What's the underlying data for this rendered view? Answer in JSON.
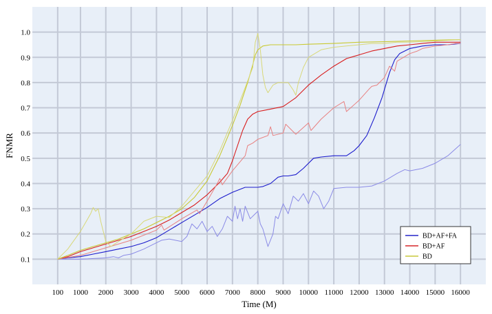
{
  "chart_data": {
    "type": "line",
    "title": "",
    "xlabel": "Time (M)",
    "ylabel": "FNMR",
    "xlim": [
      -900,
      17000
    ],
    "ylim": [
      0,
      1.1
    ],
    "x_ticks": [
      100,
      1000,
      2000,
      3000,
      4000,
      5000,
      6000,
      7000,
      8000,
      9000,
      10000,
      11000,
      12000,
      13000,
      14000,
      15000,
      16000
    ],
    "x_tick_labels": [
      "100",
      "1000",
      "2000",
      "3000",
      "4000",
      "5000",
      "6000",
      "7000",
      "8000",
      "9000",
      "10000",
      "11000",
      "12000",
      "13000",
      "14000",
      "15000",
      "16000"
    ],
    "y_ticks": [
      0.1,
      0.2,
      0.3,
      0.4,
      0.5,
      0.6,
      0.7,
      0.8,
      0.9,
      1.0
    ],
    "y_tick_labels": [
      "0.1",
      "0.2",
      "0.3",
      "0.4",
      "0.5",
      "0.6",
      "0.7",
      "0.8",
      "0.9",
      "1.0"
    ],
    "grid": true,
    "legend_position": "bottom-right",
    "background_color": "#e8eff8",
    "grid_color": "#c3c9d6",
    "legend": [
      {
        "label": "BD+AF+FA",
        "color": "#2525c8"
      },
      {
        "label": "BD+AF",
        "color": "#d62728"
      },
      {
        "label": "BD",
        "color": "#c8c83a"
      }
    ],
    "series": [
      {
        "name": "BD+AF+FA",
        "color": "#1a1acc",
        "width": 1.1,
        "x": [
          100,
          500,
          1000,
          1500,
          2000,
          2500,
          3000,
          3500,
          4000,
          4500,
          5000,
          5500,
          6000,
          6500,
          7000,
          7500,
          8000,
          8200,
          8500,
          8800,
          9000,
          9200,
          9500,
          9800,
          10000,
          10200,
          10500,
          11000,
          11500,
          11800,
          12000,
          12300,
          12600,
          12900,
          13200,
          13400,
          13600,
          14000,
          14500,
          15000,
          15500,
          16000
        ],
        "y": [
          0.1,
          0.105,
          0.11,
          0.12,
          0.13,
          0.14,
          0.15,
          0.165,
          0.185,
          0.215,
          0.245,
          0.275,
          0.305,
          0.34,
          0.365,
          0.385,
          0.385,
          0.388,
          0.4,
          0.425,
          0.43,
          0.43,
          0.435,
          0.46,
          0.48,
          0.5,
          0.505,
          0.51,
          0.51,
          0.53,
          0.55,
          0.59,
          0.66,
          0.74,
          0.84,
          0.89,
          0.915,
          0.935,
          0.945,
          0.95,
          0.95,
          0.955
        ]
      },
      {
        "name": "BD+AF+FA (light)",
        "color": "#8a8ae6",
        "width": 1,
        "x": [
          100,
          1000,
          2000,
          2300,
          2500,
          2700,
          3000,
          3500,
          3800,
          4000,
          4200,
          4500,
          5000,
          5200,
          5400,
          5600,
          5800,
          6000,
          6200,
          6400,
          6600,
          6800,
          7000,
          7100,
          7200,
          7300,
          7400,
          7500,
          7700,
          7900,
          8000,
          8100,
          8200,
          8400,
          8600,
          8700,
          8800,
          9000,
          9200,
          9400,
          9600,
          9800,
          10000,
          10200,
          10400,
          10600,
          10800,
          11000,
          11500,
          12000,
          12500,
          13000,
          13500,
          13800,
          14000,
          14500,
          15000,
          15500,
          16000
        ],
        "y": [
          0.1,
          0.1,
          0.105,
          0.11,
          0.105,
          0.115,
          0.12,
          0.14,
          0.155,
          0.165,
          0.175,
          0.18,
          0.17,
          0.19,
          0.24,
          0.22,
          0.25,
          0.21,
          0.23,
          0.19,
          0.22,
          0.27,
          0.25,
          0.31,
          0.26,
          0.3,
          0.25,
          0.31,
          0.26,
          0.28,
          0.29,
          0.24,
          0.22,
          0.15,
          0.2,
          0.27,
          0.26,
          0.32,
          0.28,
          0.35,
          0.33,
          0.36,
          0.32,
          0.37,
          0.35,
          0.3,
          0.33,
          0.38,
          0.385,
          0.385,
          0.39,
          0.41,
          0.44,
          0.455,
          0.45,
          0.46,
          0.48,
          0.51,
          0.555
        ]
      },
      {
        "name": "BD+AF",
        "color": "#d81c1c",
        "width": 1.1,
        "x": [
          100,
          500,
          1000,
          1500,
          2000,
          2500,
          3000,
          3500,
          4000,
          4500,
          5000,
          5500,
          6000,
          6500,
          6800,
          7000,
          7200,
          7400,
          7600,
          7800,
          8000,
          8500,
          9000,
          9500,
          10000,
          10500,
          11000,
          11500,
          12000,
          12500,
          13000,
          13500,
          14000,
          14500,
          15000,
          15500,
          16000
        ],
        "y": [
          0.1,
          0.11,
          0.13,
          0.145,
          0.16,
          0.175,
          0.19,
          0.21,
          0.23,
          0.255,
          0.285,
          0.315,
          0.355,
          0.405,
          0.44,
          0.49,
          0.55,
          0.61,
          0.655,
          0.675,
          0.685,
          0.695,
          0.705,
          0.74,
          0.79,
          0.83,
          0.865,
          0.895,
          0.91,
          0.925,
          0.935,
          0.945,
          0.95,
          0.955,
          0.96,
          0.96,
          0.96
        ]
      },
      {
        "name": "BD+AF (light)",
        "color": "#e88080",
        "width": 1,
        "x": [
          100,
          1000,
          2000,
          3000,
          4000,
          4200,
          4300,
          5000,
          5600,
          5700,
          6000,
          6400,
          6500,
          6600,
          7000,
          7500,
          7600,
          7800,
          8000,
          8400,
          8500,
          8600,
          9000,
          9100,
          9500,
          10000,
          10100,
          10500,
          11000,
          11400,
          11500,
          12000,
          12400,
          12500,
          12700,
          13000,
          13200,
          13400,
          13500,
          14000,
          14300,
          14500,
          15000,
          15500,
          15800,
          16000
        ],
        "y": [
          0.1,
          0.115,
          0.145,
          0.175,
          0.215,
          0.235,
          0.215,
          0.26,
          0.295,
          0.28,
          0.33,
          0.4,
          0.42,
          0.395,
          0.45,
          0.51,
          0.55,
          0.56,
          0.575,
          0.59,
          0.625,
          0.59,
          0.6,
          0.635,
          0.595,
          0.64,
          0.61,
          0.655,
          0.7,
          0.725,
          0.685,
          0.73,
          0.775,
          0.785,
          0.79,
          0.82,
          0.865,
          0.845,
          0.885,
          0.915,
          0.925,
          0.935,
          0.945,
          0.95,
          0.955,
          0.955
        ]
      },
      {
        "name": "BD",
        "color": "#c9c930",
        "width": 1.1,
        "x": [
          100,
          500,
          1000,
          1500,
          2000,
          2500,
          3000,
          3500,
          4000,
          4500,
          5000,
          5500,
          6000,
          6500,
          7000,
          7300,
          7600,
          7800,
          7900,
          8000,
          8200,
          8500,
          9000,
          9500,
          10000,
          11000,
          12000,
          13000,
          14000,
          15000,
          16000
        ],
        "y": [
          0.1,
          0.115,
          0.135,
          0.15,
          0.165,
          0.18,
          0.2,
          0.22,
          0.245,
          0.27,
          0.3,
          0.345,
          0.41,
          0.51,
          0.63,
          0.71,
          0.8,
          0.87,
          0.91,
          0.93,
          0.945,
          0.95,
          0.95,
          0.95,
          0.952,
          0.955,
          0.96,
          0.962,
          0.965,
          0.968,
          0.97
        ]
      },
      {
        "name": "BD (light)",
        "color": "#d8d878",
        "width": 1,
        "x": [
          100,
          500,
          1000,
          1400,
          1500,
          1600,
          1700,
          1800,
          2000,
          2200,
          2500,
          3000,
          3500,
          4000,
          4500,
          5000,
          5500,
          6000,
          6500,
          7000,
          7500,
          7800,
          7900,
          8000,
          8100,
          8200,
          8300,
          8400,
          8600,
          8800,
          9000,
          9200,
          9400,
          9500,
          9600,
          9800,
          10000,
          10500,
          11000,
          11500,
          12000,
          12500,
          13000,
          13500,
          14000,
          15000,
          16000
        ],
        "y": [
          0.1,
          0.14,
          0.21,
          0.28,
          0.305,
          0.29,
          0.3,
          0.25,
          0.17,
          0.15,
          0.17,
          0.2,
          0.25,
          0.27,
          0.265,
          0.31,
          0.37,
          0.43,
          0.53,
          0.65,
          0.78,
          0.86,
          0.96,
          0.995,
          0.93,
          0.83,
          0.78,
          0.76,
          0.79,
          0.8,
          0.8,
          0.8,
          0.77,
          0.75,
          0.8,
          0.86,
          0.9,
          0.93,
          0.94,
          0.945,
          0.95,
          0.955,
          0.955,
          0.96,
          0.96,
          0.965,
          0.97
        ]
      }
    ]
  }
}
